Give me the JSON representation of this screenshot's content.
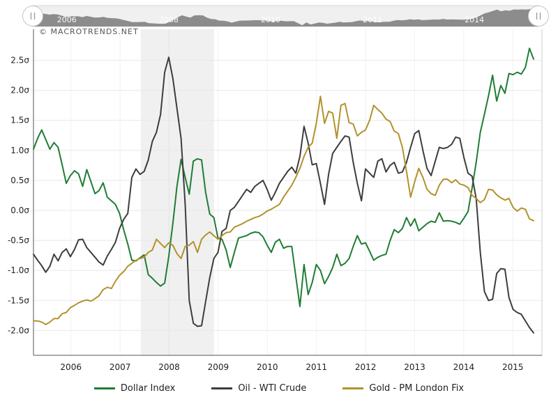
{
  "watermark": "© MACROTRENDS.NET",
  "colors": {
    "dollar": "#1f7d35",
    "oil": "#3d3d3d",
    "gold": "#b2922c",
    "grid": "#e8e8e8",
    "year_grid": "#f1f1f1",
    "axis_line": "#555555",
    "right_spine": "#cccccc",
    "recession_band": "#000000",
    "recession_band_opacity": 0.06,
    "nav_background": "#f0f0f0",
    "nav_border": "#d6d6d6",
    "nav_area": "#8c8c8c",
    "axis_text": "#222222"
  },
  "navigator": {
    "year_labels": [
      "2006",
      "2008",
      "2010",
      "2012",
      "2014"
    ]
  },
  "chart_data": {
    "type": "line",
    "title": "",
    "y_tick_values": [
      2.5,
      2.0,
      1.5,
      1.0,
      0.5,
      0.0,
      -0.5,
      -1.0,
      -1.5,
      -2.0
    ],
    "y_tick_labels": [
      "2.5σ",
      "2.0σ",
      "1.5σ",
      "1.0σ",
      "0.5σ",
      "0.0σ",
      "-0.5σ",
      "-1.0σ",
      "-1.5σ",
      "-2.0σ"
    ],
    "x_tick_labels": [
      "2006",
      "2007",
      "2008",
      "2009",
      "2010",
      "2011",
      "2012",
      "2013",
      "2014",
      "2015"
    ],
    "ylim": [
      -2.35,
      2.9
    ],
    "grid": true,
    "legend_position": "bottom",
    "recession_band": {
      "x_from_frac": 0.211,
      "x_to_frac": 0.355
    },
    "series": [
      {
        "name": "Dollar Index",
        "color": "#1f7d35",
        "values": [
          1.02,
          1.2,
          1.34,
          1.18,
          1.02,
          1.13,
          1.05,
          0.76,
          0.45,
          0.58,
          0.66,
          0.61,
          0.4,
          0.68,
          0.48,
          0.28,
          0.33,
          0.46,
          0.22,
          0.16,
          0.1,
          -0.05,
          -0.32,
          -0.56,
          -0.83,
          -0.84,
          -0.79,
          -0.74,
          -1.07,
          -1.13,
          -1.2,
          -1.26,
          -1.21,
          -0.77,
          -0.22,
          0.4,
          0.85,
          0.55,
          0.27,
          0.82,
          0.86,
          0.84,
          0.3,
          -0.06,
          -0.12,
          -0.46,
          -0.48,
          -0.66,
          -0.95,
          -0.7,
          -0.46,
          -0.44,
          -0.42,
          -0.38,
          -0.36,
          -0.37,
          -0.44,
          -0.58,
          -0.7,
          -0.53,
          -0.48,
          -0.63,
          -0.6,
          -0.6,
          -1.1,
          -1.6,
          -0.9,
          -1.4,
          -1.2,
          -0.9,
          -1.0,
          -1.22,
          -1.1,
          -0.95,
          -0.73,
          -0.92,
          -0.88,
          -0.8,
          -0.6,
          -0.42,
          -0.56,
          -0.54,
          -0.68,
          -0.83,
          -0.78,
          -0.75,
          -0.73,
          -0.5,
          -0.32,
          -0.37,
          -0.3,
          -0.12,
          -0.26,
          -0.14,
          -0.34,
          -0.28,
          -0.22,
          -0.18,
          -0.2,
          -0.04,
          -0.18,
          -0.17,
          -0.18,
          -0.2,
          -0.23,
          -0.13,
          -0.02,
          0.37,
          0.8,
          1.3,
          1.6,
          1.91,
          2.25,
          1.82,
          2.08,
          1.95,
          2.28,
          2.26,
          2.3,
          2.27,
          2.38,
          2.7,
          2.52
        ]
      },
      {
        "name": "Oil - WTI Crude",
        "color": "#3d3d3d",
        "values": [
          -0.73,
          -0.83,
          -0.92,
          -1.03,
          -0.93,
          -0.73,
          -0.84,
          -0.7,
          -0.64,
          -0.77,
          -0.65,
          -0.49,
          -0.48,
          -0.62,
          -0.7,
          -0.78,
          -0.86,
          -0.91,
          -0.76,
          -0.65,
          -0.53,
          -0.3,
          -0.15,
          -0.05,
          0.55,
          0.69,
          0.6,
          0.65,
          0.84,
          1.15,
          1.3,
          1.6,
          2.3,
          2.55,
          2.2,
          1.7,
          1.2,
          0.1,
          -1.5,
          -1.88,
          -1.93,
          -1.92,
          -1.52,
          -1.12,
          -0.8,
          -0.7,
          -0.35,
          -0.3,
          0.0,
          0.05,
          0.15,
          0.25,
          0.35,
          0.3,
          0.4,
          0.45,
          0.5,
          0.35,
          0.17,
          0.3,
          0.45,
          0.55,
          0.65,
          0.72,
          0.62,
          0.9,
          1.4,
          1.12,
          0.76,
          0.78,
          0.45,
          0.1,
          0.6,
          0.95,
          1.05,
          1.15,
          1.24,
          1.22,
          0.8,
          0.45,
          0.16,
          0.69,
          0.62,
          0.55,
          0.82,
          0.86,
          0.64,
          0.75,
          0.8,
          0.62,
          0.64,
          0.8,
          1.05,
          1.28,
          1.33,
          1.0,
          0.7,
          0.58,
          0.82,
          1.05,
          1.03,
          1.05,
          1.1,
          1.22,
          1.2,
          0.88,
          0.62,
          0.57,
          0.2,
          -0.7,
          -1.35,
          -1.5,
          -1.48,
          -1.05,
          -0.97,
          -0.98,
          -1.45,
          -1.65,
          -1.7,
          -1.73,
          -1.84,
          -1.95,
          -2.04
        ]
      },
      {
        "name": "Gold - PM London Fix",
        "color": "#b2922c",
        "values": [
          -1.84,
          -1.84,
          -1.86,
          -1.9,
          -1.86,
          -1.8,
          -1.8,
          -1.72,
          -1.7,
          -1.62,
          -1.58,
          -1.54,
          -1.51,
          -1.49,
          -1.51,
          -1.47,
          -1.42,
          -1.32,
          -1.28,
          -1.3,
          -1.18,
          -1.08,
          -1.02,
          -0.93,
          -0.88,
          -0.83,
          -0.8,
          -0.78,
          -0.7,
          -0.66,
          -0.48,
          -0.55,
          -0.62,
          -0.54,
          -0.58,
          -0.72,
          -0.8,
          -0.6,
          -0.58,
          -0.52,
          -0.7,
          -0.48,
          -0.41,
          -0.36,
          -0.42,
          -0.48,
          -0.42,
          -0.37,
          -0.36,
          -0.28,
          -0.25,
          -0.22,
          -0.18,
          -0.15,
          -0.12,
          -0.1,
          -0.06,
          -0.01,
          0.02,
          0.06,
          0.1,
          0.22,
          0.32,
          0.42,
          0.55,
          0.7,
          0.9,
          1.05,
          1.12,
          1.45,
          1.9,
          1.45,
          1.65,
          1.62,
          1.2,
          1.75,
          1.78,
          1.46,
          1.44,
          1.24,
          1.3,
          1.34,
          1.5,
          1.75,
          1.68,
          1.62,
          1.52,
          1.48,
          1.32,
          1.28,
          1.05,
          0.65,
          0.22,
          0.48,
          0.7,
          0.55,
          0.35,
          0.28,
          0.25,
          0.42,
          0.52,
          0.52,
          0.46,
          0.51,
          0.44,
          0.42,
          0.38,
          0.25,
          0.2,
          0.13,
          0.18,
          0.35,
          0.34,
          0.26,
          0.21,
          0.17,
          0.2,
          0.05,
          -0.01,
          0.04,
          0.02,
          -0.14,
          -0.17
        ]
      }
    ]
  }
}
